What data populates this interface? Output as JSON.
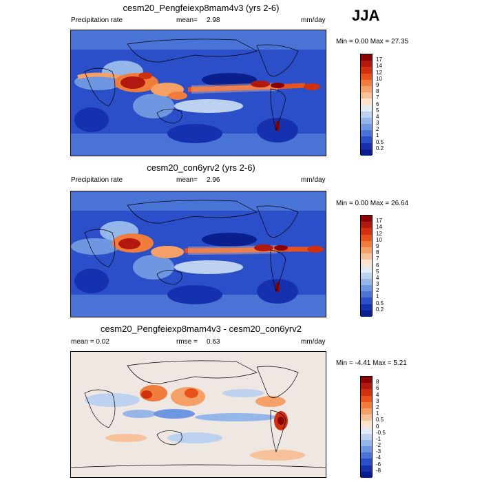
{
  "season": "JJA",
  "panels": [
    {
      "title": "cesm20_Pengfeiexp8mam4v3 (yrs 2-6)",
      "left_label": "Precipitation rate",
      "mean_label": "mean=",
      "mean_value": "2.98",
      "units": "mm/day",
      "minmax": "Min =   0.00 Max =  27.35"
    },
    {
      "title": "cesm20_con6yrv2 (yrs 2-6)",
      "left_label": "Precipitation rate",
      "mean_label": "mean=",
      "mean_value": "2.96",
      "units": "mm/day",
      "minmax": "Min =   0.00 Max =  26.64"
    },
    {
      "title": "cesm20_Pengfeiexp8mam4v3 - cesm20_con6yrv2",
      "left_label": "mean =   0.02",
      "mean_label": "rmse =",
      "mean_value": "0.63",
      "units": "mm/day",
      "minmax": "Min =  -4.41 Max =   5.21"
    }
  ],
  "colorbars": {
    "precip": {
      "labels": [
        "17",
        "14",
        "12",
        "10",
        "9",
        "8",
        "7",
        "6",
        "5",
        "4",
        "3",
        "2",
        "1",
        "0.5",
        "0.2"
      ],
      "colors": [
        "#8b0000",
        "#b2180e",
        "#d1300f",
        "#e8531c",
        "#f07c3c",
        "#f4a067",
        "#f7c29a",
        "#fbe3cd",
        "#e3ebf6",
        "#bcd2ef",
        "#95b6e8",
        "#6f96e0",
        "#4a73d6",
        "#2b4fc8",
        "#1631b0",
        "#0a1f8e"
      ]
    },
    "diff": {
      "labels": [
        "8",
        "6",
        "4",
        "3",
        "2",
        "1",
        "0.5",
        "0",
        "-0.5",
        "-1",
        "-2",
        "-3",
        "-4",
        "-6",
        "-8"
      ],
      "colors": [
        "#8b0000",
        "#b2180e",
        "#d1300f",
        "#e8531c",
        "#f07c3c",
        "#f4a067",
        "#f7c29a",
        "#fbe3cd",
        "#e3ebf6",
        "#bcd2ef",
        "#95b6e8",
        "#6f96e0",
        "#4a73d6",
        "#2b4fc8",
        "#1631b0",
        "#0a1f8e"
      ]
    }
  },
  "chart_data": [
    {
      "type": "heatmap",
      "title": "cesm20_Pengfeiexp8mam4v3 (yrs 2-6)",
      "variable": "Precipitation rate",
      "units": "mm/day",
      "mean": 2.98,
      "min": 0.0,
      "max": 27.35,
      "levels": [
        0.2,
        0.5,
        1,
        2,
        3,
        4,
        5,
        6,
        7,
        8,
        9,
        10,
        12,
        14,
        17
      ]
    },
    {
      "type": "heatmap",
      "title": "cesm20_con6yrv2 (yrs 2-6)",
      "variable": "Precipitation rate",
      "units": "mm/day",
      "mean": 2.96,
      "min": 0.0,
      "max": 26.64,
      "levels": [
        0.2,
        0.5,
        1,
        2,
        3,
        4,
        5,
        6,
        7,
        8,
        9,
        10,
        12,
        14,
        17
      ]
    },
    {
      "type": "heatmap",
      "title": "cesm20_Pengfeiexp8mam4v3 - cesm20_con6yrv2",
      "units": "mm/day",
      "mean": 0.02,
      "rmse": 0.63,
      "min": -4.41,
      "max": 5.21,
      "levels": [
        -8,
        -6,
        -4,
        -3,
        -2,
        -1,
        -0.5,
        0,
        0.5,
        1,
        2,
        3,
        4,
        6,
        8
      ]
    }
  ]
}
